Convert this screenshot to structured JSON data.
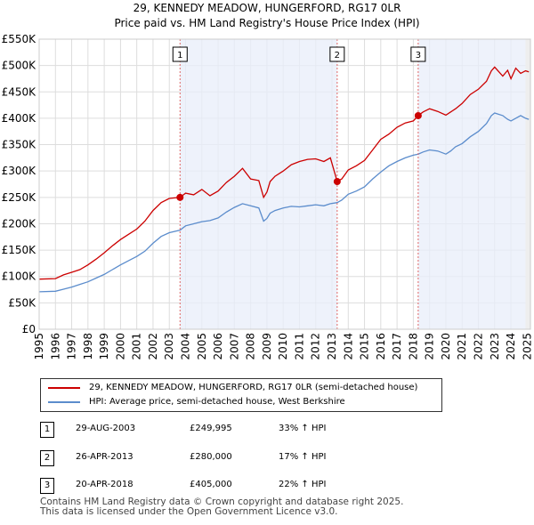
{
  "chart_data": {
    "type": "line",
    "title": "29, KENNEDY MEADOW, HUNGERFORD, RG17 0LR",
    "subtitle": "Price paid vs. HM Land Registry's House Price Index (HPI)",
    "xlim": [
      1995,
      2025.2
    ],
    "ylim": [
      0,
      550000
    ],
    "x_ticks": [
      "1995",
      "1996",
      "1997",
      "1998",
      "1999",
      "2000",
      "2001",
      "2002",
      "2003",
      "2004",
      "2005",
      "2006",
      "2007",
      "2008",
      "2009",
      "2010",
      "2011",
      "2012",
      "2013",
      "2014",
      "2015",
      "2016",
      "2017",
      "2018",
      "2019",
      "2020",
      "2021",
      "2022",
      "2023",
      "2024",
      "2025"
    ],
    "y_ticks": [
      {
        "value": 0,
        "label": "£0"
      },
      {
        "value": 50000,
        "label": "£50K"
      },
      {
        "value": 100000,
        "label": "£100K"
      },
      {
        "value": 150000,
        "label": "£150K"
      },
      {
        "value": 200000,
        "label": "£200K"
      },
      {
        "value": 250000,
        "label": "£250K"
      },
      {
        "value": 300000,
        "label": "£300K"
      },
      {
        "value": 350000,
        "label": "£350K"
      },
      {
        "value": 400000,
        "label": "£400K"
      },
      {
        "value": 450000,
        "label": "£450K"
      },
      {
        "value": 500000,
        "label": "£500K"
      },
      {
        "value": 550000,
        "label": "£550K"
      }
    ],
    "series": [
      {
        "name": "29, KENNEDY MEADOW, HUNGERFORD, RG17 0LR (semi-detached house)",
        "color": "#cc0000",
        "x": [
          1995,
          1996,
          1996.5,
          1997,
          1997.5,
          1998,
          1998.5,
          1999,
          1999.5,
          2000,
          2000.5,
          2001,
          2001.5,
          2002,
          2002.5,
          2003,
          2003.66,
          2004,
          2004.5,
          2005,
          2005.5,
          2006,
          2006.5,
          2007,
          2007.5,
          2008,
          2008.5,
          2008.8,
          2009,
          2009.2,
          2009.5,
          2010,
          2010.5,
          2011,
          2011.5,
          2012,
          2012.5,
          2012.9,
          2013.32,
          2013.6,
          2014,
          2014.5,
          2015,
          2015.5,
          2016,
          2016.5,
          2017,
          2017.5,
          2018,
          2018.3,
          2018.6,
          2019,
          2019.5,
          2020,
          2020.3,
          2020.6,
          2021,
          2021.5,
          2022,
          2022.5,
          2022.8,
          2023,
          2023.5,
          2023.8,
          2024,
          2024.3,
          2024.6,
          2024.9,
          2025.1
        ],
        "values": [
          95000,
          96000,
          103000,
          108000,
          113000,
          122000,
          133000,
          145000,
          158000,
          170000,
          180000,
          190000,
          205000,
          225000,
          240000,
          248000,
          249995,
          258000,
          255000,
          265000,
          253000,
          262000,
          278000,
          290000,
          305000,
          285000,
          282000,
          250000,
          260000,
          280000,
          290000,
          300000,
          312000,
          318000,
          322000,
          323000,
          318000,
          325000,
          280000,
          285000,
          302000,
          310000,
          320000,
          340000,
          360000,
          370000,
          383000,
          391000,
          395000,
          405000,
          412000,
          418000,
          413000,
          406000,
          412000,
          418000,
          428000,
          445000,
          455000,
          470000,
          490000,
          497000,
          480000,
          491000,
          475000,
          495000,
          485000,
          490000,
          488000
        ]
      },
      {
        "name": "HPI: Average price, semi-detached house, West Berkshire",
        "color": "#5b8ccc",
        "x": [
          1995,
          1996,
          1996.5,
          1997,
          1997.5,
          1998,
          1998.5,
          1999,
          1999.5,
          2000,
          2000.5,
          2001,
          2001.5,
          2002,
          2002.5,
          2003,
          2003.66,
          2004,
          2004.5,
          2005,
          2005.5,
          2006,
          2006.5,
          2007,
          2007.5,
          2008,
          2008.5,
          2008.8,
          2009,
          2009.2,
          2009.5,
          2010,
          2010.5,
          2011,
          2011.5,
          2012,
          2012.5,
          2012.9,
          2013.32,
          2013.6,
          2014,
          2014.5,
          2015,
          2015.5,
          2016,
          2016.5,
          2017,
          2017.5,
          2018,
          2018.3,
          2018.6,
          2019,
          2019.5,
          2020,
          2020.3,
          2020.6,
          2021,
          2021.5,
          2022,
          2022.5,
          2022.8,
          2023,
          2023.5,
          2023.8,
          2024,
          2024.3,
          2024.6,
          2024.9,
          2025.1
        ],
        "values": [
          71000,
          72000,
          76000,
          80000,
          85000,
          90000,
          97000,
          104000,
          113000,
          122000,
          130000,
          138000,
          148000,
          163000,
          176000,
          183000,
          188000,
          196000,
          200000,
          204000,
          206000,
          211000,
          222000,
          231000,
          238000,
          234000,
          230000,
          205000,
          210000,
          220000,
          225000,
          230000,
          233000,
          232000,
          234000,
          236000,
          234000,
          238000,
          240000,
          245000,
          256000,
          262000,
          270000,
          285000,
          298000,
          310000,
          318000,
          325000,
          330000,
          332000,
          336000,
          340000,
          338000,
          332000,
          338000,
          346000,
          352000,
          365000,
          375000,
          390000,
          405000,
          410000,
          405000,
          398000,
          395000,
          400000,
          405000,
          400000,
          398000
        ]
      }
    ],
    "sales": [
      {
        "n": "1",
        "x": 2003.66,
        "value": 249995,
        "date": "29-AUG-2003",
        "price": "£249,995",
        "hpi": "33% ↑ HPI"
      },
      {
        "n": "2",
        "x": 2013.32,
        "value": 280000,
        "date": "26-APR-2013",
        "price": "£280,000",
        "hpi": "17% ↑ HPI"
      },
      {
        "n": "3",
        "x": 2018.3,
        "value": 405000,
        "date": "20-APR-2018",
        "price": "£405,000",
        "hpi": "22% ↑ HPI"
      }
    ]
  },
  "legend": {
    "items": [
      {
        "label": "29, KENNEDY MEADOW, HUNGERFORD, RG17 0LR (semi-detached house)",
        "color": "#cc0000"
      },
      {
        "label": "HPI: Average price, semi-detached house, West Berkshire",
        "color": "#5b8ccc"
      }
    ]
  },
  "footer": {
    "line1": "Contains HM Land Registry data © Crown copyright and database right 2025.",
    "line2": "This data is licensed under the Open Government Licence v3.0."
  }
}
